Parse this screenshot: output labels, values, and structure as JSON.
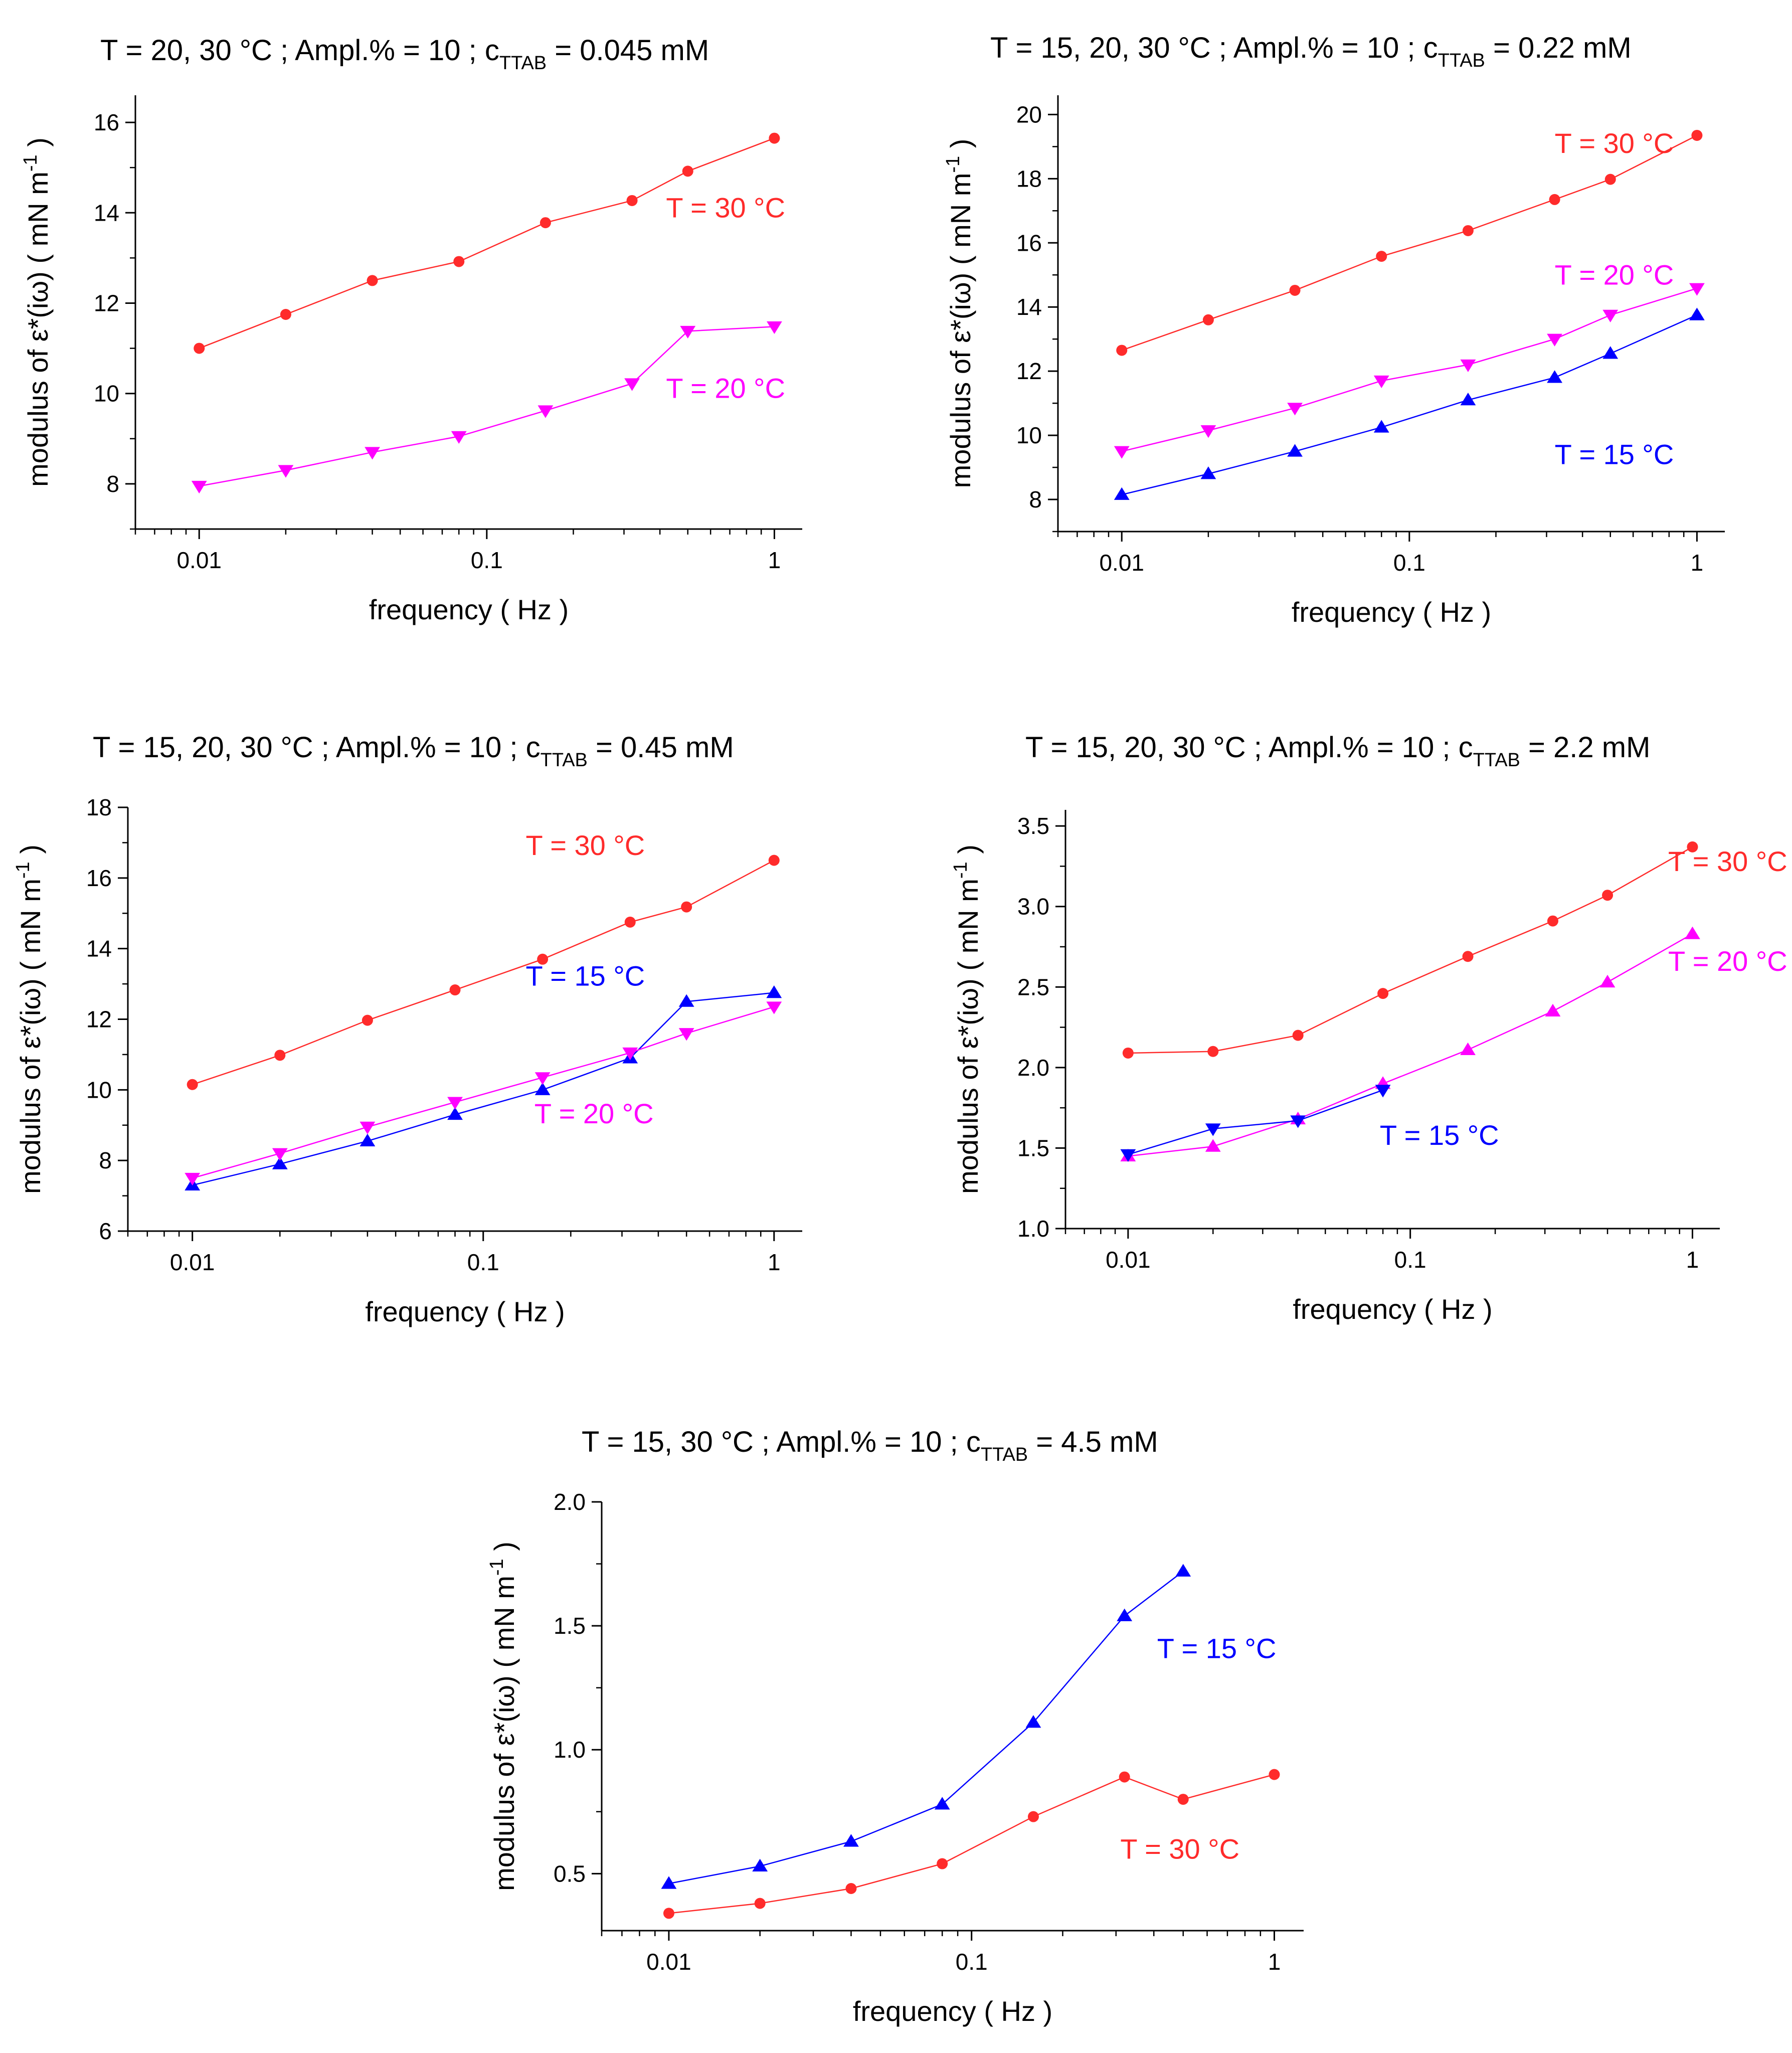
{
  "chart_data": [
    {
      "type": "line",
      "title": {
        "prefix": "T = 20, 30 °C ;     Ampl.% = 10 ;  c",
        "subscript": "TTAB",
        "suffix": " = 0.045 mM"
      },
      "xlabel": "frequency  ( Hz )",
      "ylabel": "modulus of ε*(iω)  ( mN m",
      "ylabel_sup": "-1",
      "ylabel_close": " )",
      "xscale": "log",
      "xlim": [
        0.006,
        1.25
      ],
      "ylim": [
        7,
        16.6
      ],
      "xticks": [
        0.01,
        0.1,
        1
      ],
      "xtick_labels": [
        "0.01",
        "0.1",
        "1"
      ],
      "yticks": [
        8,
        10,
        12,
        14,
        16
      ],
      "ytick_labels": [
        "8",
        "10",
        "12",
        "14",
        "16"
      ],
      "series": [
        {
          "name": "T = 30 °C",
          "color": "#ff2b2b",
          "marker": "circle",
          "x": [
            0.01,
            0.02,
            0.04,
            0.08,
            0.16,
            0.32,
            0.5,
            1
          ],
          "y": [
            11.0,
            11.75,
            12.5,
            12.92,
            13.78,
            14.27,
            14.92,
            15.65
          ]
        },
        {
          "name": "T = 20 °C",
          "color": "#ff00ff",
          "marker": "triangle-down",
          "x": [
            0.01,
            0.02,
            0.04,
            0.08,
            0.16,
            0.32,
            0.5,
            1
          ],
          "y": [
            7.95,
            8.3,
            8.7,
            9.05,
            9.62,
            10.22,
            11.38,
            11.48
          ]
        }
      ],
      "annotations": [
        {
          "text": "T = 30 °C",
          "color": "#ff2b2b",
          "x": 0.42,
          "y": 13.9
        },
        {
          "text": "T = 20 °C",
          "color": "#ff00ff",
          "x": 0.42,
          "y": 9.9
        }
      ]
    },
    {
      "type": "line",
      "title": {
        "prefix": "T = 15, 20, 30 °C ;     Ampl.% = 10 ;     c",
        "subscript": "TTAB",
        "suffix": " = 0.22 mM"
      },
      "xlabel": "frequency  ( Hz )",
      "ylabel": "modulus of ε*(iω)  ( mN m",
      "ylabel_sup": "-1",
      "ylabel_close": " )",
      "xscale": "log",
      "xlim": [
        0.006,
        1.25
      ],
      "ylim": [
        7,
        20.6
      ],
      "xticks": [
        0.01,
        0.1,
        1
      ],
      "xtick_labels": [
        "0.01",
        "0.1",
        "1"
      ],
      "yticks": [
        8,
        10,
        12,
        14,
        16,
        18,
        20
      ],
      "ytick_labels": [
        "8",
        "10",
        "12",
        "14",
        "16",
        "18",
        "20"
      ],
      "series": [
        {
          "name": "T = 30 °C",
          "color": "#ff2b2b",
          "marker": "circle",
          "x": [
            0.01,
            0.02,
            0.04,
            0.08,
            0.16,
            0.32,
            0.5,
            1
          ],
          "y": [
            12.65,
            13.6,
            14.52,
            15.58,
            16.38,
            17.35,
            17.98,
            19.35
          ]
        },
        {
          "name": "T = 20 °C",
          "color": "#ff00ff",
          "marker": "triangle-down",
          "x": [
            0.01,
            0.02,
            0.04,
            0.08,
            0.16,
            0.32,
            0.5,
            1
          ],
          "y": [
            9.5,
            10.15,
            10.85,
            11.7,
            12.2,
            13.0,
            13.75,
            14.58
          ]
        },
        {
          "name": "T = 15 °C",
          "color": "#0000ff",
          "marker": "triangle-up",
          "x": [
            0.01,
            0.02,
            0.04,
            0.08,
            0.16,
            0.32,
            0.5,
            1
          ],
          "y": [
            8.15,
            8.8,
            9.5,
            10.25,
            11.1,
            11.8,
            12.55,
            13.75
          ]
        }
      ],
      "annotations": [
        {
          "text": "T = 30 °C",
          "color": "#ff2b2b",
          "x": 0.32,
          "y": 18.8
        },
        {
          "text": "T = 20 °C",
          "color": "#ff00ff",
          "x": 0.32,
          "y": 14.7
        },
        {
          "text": "T = 15 °C",
          "color": "#0000ff",
          "x": 0.32,
          "y": 9.1
        }
      ]
    },
    {
      "type": "line",
      "title": {
        "prefix": "T = 15, 20, 30 °C ;     Ampl.% = 10 ;  c",
        "subscript": "TTAB",
        "suffix": " = 0.45 mM"
      },
      "xlabel": "frequency ( Hz )",
      "ylabel": "modulus of ε*(iω)  ( mN m",
      "ylabel_sup": "-1",
      "ylabel_close": " )",
      "xscale": "log",
      "xlim": [
        0.006,
        1.25
      ],
      "ylim": [
        6,
        18
      ],
      "xticks": [
        0.01,
        0.1,
        1
      ],
      "xtick_labels": [
        "0.01",
        "0.1",
        "1"
      ],
      "yticks": [
        6,
        8,
        10,
        12,
        14,
        16,
        18
      ],
      "ytick_labels": [
        "6",
        "8",
        "10",
        "12",
        "14",
        "16",
        "18"
      ],
      "series": [
        {
          "name": "T = 30 °C",
          "color": "#ff2b2b",
          "marker": "circle",
          "x": [
            0.01,
            0.02,
            0.04,
            0.08,
            0.16,
            0.32,
            0.5,
            1
          ],
          "y": [
            10.15,
            10.98,
            11.97,
            12.83,
            13.7,
            14.75,
            15.18,
            16.5
          ]
        },
        {
          "name": "T = 15 °C",
          "color": "#0000ff",
          "marker": "triangle-up",
          "x": [
            0.01,
            0.02,
            0.04,
            0.08,
            0.16,
            0.32,
            0.5,
            1
          ],
          "y": [
            7.3,
            7.9,
            8.55,
            9.3,
            10.0,
            10.9,
            12.5,
            12.75
          ]
        },
        {
          "name": "T = 20 °C",
          "color": "#ff00ff",
          "marker": "triangle-down",
          "x": [
            0.01,
            0.02,
            0.04,
            0.08,
            0.16,
            0.32,
            0.5,
            1
          ],
          "y": [
            7.5,
            8.2,
            8.95,
            9.65,
            10.35,
            11.05,
            11.6,
            12.35
          ]
        }
      ],
      "annotations": [
        {
          "text": "T = 30 °C",
          "color": "#ff2b2b",
          "x": 0.14,
          "y": 16.65
        },
        {
          "text": "T = 15 °C",
          "color": "#0000ff",
          "x": 0.14,
          "y": 12.95
        },
        {
          "text": "T = 20 °C",
          "color": "#ff00ff",
          "x": 0.15,
          "y": 9.05
        }
      ]
    },
    {
      "type": "line",
      "title": {
        "prefix": "T = 15, 20, 30 °C ;   Ampl.% = 10 ;      c",
        "subscript": "TTAB",
        "suffix": " = 2.2 mM"
      },
      "xlabel": "frequency ( Hz )",
      "ylabel": "modulus of ε*(iω)  ( mN m",
      "ylabel_sup": "-1",
      "ylabel_close": " )",
      "xscale": "log",
      "xlim": [
        0.006,
        1.25
      ],
      "ylim": [
        1.0,
        3.6
      ],
      "xticks": [
        0.01,
        0.1,
        1
      ],
      "xtick_labels": [
        "0.01",
        "0.1",
        "1"
      ],
      "yticks": [
        1.0,
        1.5,
        2.0,
        2.5,
        3.0,
        3.5
      ],
      "ytick_labels": [
        "1.0",
        "1.5",
        "2.0",
        "2.5",
        "3.0",
        "3.5"
      ],
      "series": [
        {
          "name": "T = 30 °C",
          "color": "#ff2b2b",
          "marker": "circle",
          "x": [
            0.01,
            0.02,
            0.04,
            0.08,
            0.16,
            0.32,
            0.5,
            1
          ],
          "y": [
            2.09,
            2.1,
            2.2,
            2.46,
            2.69,
            2.91,
            3.07,
            3.37
          ]
        },
        {
          "name": "T = 20 °C",
          "color": "#ff00ff",
          "marker": "triangle-up",
          "x": [
            0.01,
            0.02,
            0.04,
            0.08,
            0.16,
            0.32,
            0.5,
            1
          ],
          "y": [
            1.45,
            1.51,
            1.68,
            1.9,
            2.11,
            2.35,
            2.53,
            2.83
          ]
        },
        {
          "name": "T = 15 °C",
          "color": "#0000ff",
          "marker": "triangle-down",
          "x": [
            0.01,
            0.02,
            0.04,
            0.08
          ],
          "y": [
            1.46,
            1.62,
            1.67,
            1.86
          ]
        }
      ],
      "annotations": [
        {
          "text": "T = 30 °C",
          "color": "#ff2b2b",
          "x": 0.82,
          "y": 3.22
        },
        {
          "text": "T = 20 °C",
          "color": "#ff00ff",
          "x": 0.82,
          "y": 2.6
        },
        {
          "text": "T = 15 °C",
          "color": "#0000ff",
          "x": 0.078,
          "y": 1.52
        }
      ]
    },
    {
      "type": "line",
      "title": {
        "prefix": "T = 15, 30 °C ;     Ampl.% = 10 ;  c",
        "subscript": "TTAB",
        "suffix": " = 4.5 mM"
      },
      "xlabel": "frequency ( Hz )",
      "ylabel": "modulus of ε*(iω)  ( mN m",
      "ylabel_sup": "-1",
      "ylabel_close": " )",
      "xscale": "log",
      "xlim": [
        0.006,
        1.25
      ],
      "ylim": [
        0.27,
        2.0
      ],
      "xticks": [
        0.01,
        0.1,
        1
      ],
      "xtick_labels": [
        "0.01",
        "0.1",
        "1"
      ],
      "yticks": [
        0.5,
        1.0,
        1.5,
        2.0
      ],
      "ytick_labels": [
        "0.5",
        "1.0",
        "1.5",
        "2.0"
      ],
      "series": [
        {
          "name": "T = 15 °C",
          "color": "#0000ff",
          "marker": "triangle-up",
          "x": [
            0.01,
            0.02,
            0.04,
            0.08,
            0.16,
            0.32,
            0.5
          ],
          "y": [
            0.46,
            0.53,
            0.63,
            0.78,
            1.11,
            1.54,
            1.72
          ]
        },
        {
          "name": "T = 30 °C",
          "color": "#ff2b2b",
          "marker": "circle",
          "x": [
            0.01,
            0.02,
            0.04,
            0.08,
            0.16,
            0.32,
            0.5,
            1
          ],
          "y": [
            0.34,
            0.38,
            0.44,
            0.54,
            0.73,
            0.89,
            0.8,
            0.9
          ]
        }
      ],
      "annotations": [
        {
          "text": "T = 15 °C",
          "color": "#0000ff",
          "x": 0.41,
          "y": 1.37
        },
        {
          "text": "T = 30 °C",
          "color": "#ff2b2b",
          "x": 0.31,
          "y": 0.56
        }
      ]
    }
  ]
}
